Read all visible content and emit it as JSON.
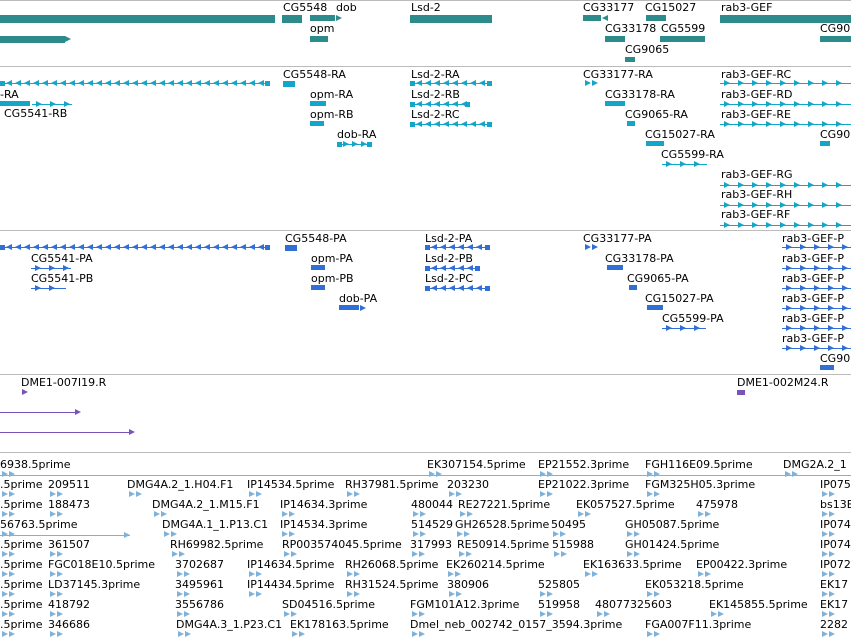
{
  "colors": {
    "gene": "#2e8b8b",
    "mrna": "#14a6c8",
    "protein": "#2f6fd6",
    "clone": "#7b52b8",
    "est": "#7fb2da"
  },
  "genes": [
    "CG5548",
    "dob",
    "Lsd-2",
    "CG33177",
    "CG15027",
    "rab3-GEF",
    "CG90",
    "opm",
    "CG33178",
    "CG5599",
    "CG9065"
  ],
  "mrnas": [
    "-RA",
    "CG5541-RB",
    "CG5548-RA",
    "opm-RA",
    "opm-RB",
    "dob-RA",
    "Lsd-2-RA",
    "Lsd-2-RB",
    "Lsd-2-RC",
    "CG33177-RA",
    "CG33178-RA",
    "CG9065-RA",
    "CG15027-RA",
    "CG5599-RA",
    "rab3-GEF-RC",
    "rab3-GEF-RD",
    "rab3-GEF-RE",
    "CG90",
    "rab3-GEF-RG",
    "rab3-GEF-RH",
    "rab3-GEF-RF"
  ],
  "proteins": [
    "CG5548-PA",
    "Lsd-2-PA",
    "CG33177-PA",
    "rab3-GEF-P",
    "CG5541-PA",
    "opm-PA",
    "Lsd-2-PB",
    "CG33178-PA",
    "rab3-GEF-P",
    "CG5541-PB",
    "opm-PB",
    "Lsd-2-PC",
    "CG9065-PA",
    "rab3-GEF-P",
    "dob-PA",
    "CG15027-PA",
    "rab3-GEF-P",
    "CG5599-PA",
    "rab3-GEF-P",
    "rab3-GEF-P",
    "CG90"
  ],
  "clones": [
    "DME1-007I19.R",
    "DME1-002M24.R"
  ],
  "ests": [
    "6938.5prime",
    "EK307154.5prime",
    "EP21552.3prime",
    "FGH116E09.5prime",
    "DMG2A.2_1",
    ".5prime",
    "209511",
    "DMG4A.2_1.H04.F1",
    "IP14534.5prime",
    "RH37981.5prime",
    "203230",
    "EP21022.3prime",
    "FGM325H05.3prime",
    "IP075",
    ".5prime",
    "188473",
    "DMG4A.2_1.M15.F1",
    "IP14634.3prime",
    "480044",
    "RE27221.5prime",
    "EK057527.5prime",
    "475978",
    "bs13E",
    "56763.5prime",
    "DMG4A.1_1.P13.C1",
    "IP14534.3prime",
    "514529",
    "GH26528.5prime",
    "50495",
    "GH05087.5prime",
    "IP074",
    ".5prime",
    "361507",
    "RH69982.5prime",
    "RP003574045.5prime",
    "317993",
    "RE50914.5prime",
    "515988",
    "GH01424.5prime",
    "IP074",
    ".5prime",
    "FGC018E10.5prime",
    "3702687",
    "IP14634.5prime",
    "RH26068.5prime",
    "EK260214.5prime",
    "EK163633.5prime",
    "EP00422.3prime",
    "IP072",
    ".5prime",
    "LD37145.3prime",
    "3495961",
    "IP14434.5prime",
    "RH31524.5prime",
    "380906",
    "525805",
    "EK053218.5prime",
    "EK17",
    ".5prime",
    "418792",
    "3556786",
    "SD04516.5prime",
    "FGM101A12.3prime",
    "519958",
    "48077325603",
    "EK145855.5prime",
    "EK17",
    ".5prime",
    "346686",
    "DMG4A.3_1.P23.C1",
    "EK178163.5prime",
    "Dmel_neb_002742_0157_3594.3prime",
    "FGA007F11.3prime",
    "2282"
  ]
}
